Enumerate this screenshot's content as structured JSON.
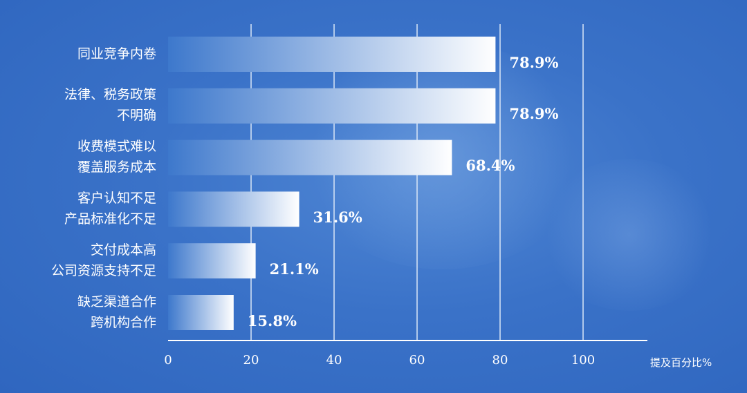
{
  "chart_data": {
    "type": "bar",
    "orientation": "horizontal",
    "categories": [
      "同业竞争内卷",
      "法律、税务政策\n不明确",
      "收费模式难以\n覆盖服务成本",
      "客户认知不足\n产品标准化不足",
      "交付成本高\n公司资源支持不足",
      "缺乏渠道合作\n跨机构合作"
    ],
    "values": [
      78.9,
      78.9,
      68.4,
      31.6,
      21.1,
      15.8
    ],
    "value_labels": [
      "78.9%",
      "78.9%",
      "68.4%",
      "31.6%",
      "21.1%",
      "15.8%"
    ],
    "xlim": [
      0,
      100
    ],
    "xticks": [
      "0",
      "20",
      "40",
      "60",
      "80",
      "100"
    ],
    "xlabel": "提及百分比%",
    "grid": true,
    "colors": {
      "bar_start": "#3d78cc",
      "bar_end": "#ffffff",
      "grid": "#dbe7f7",
      "text": "#ffffff"
    }
  }
}
